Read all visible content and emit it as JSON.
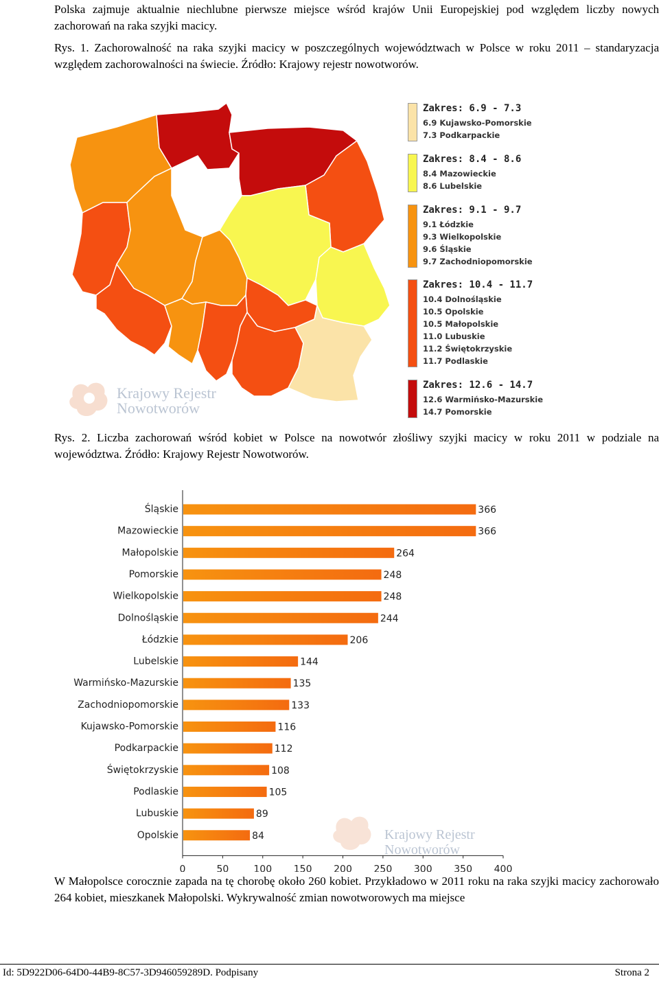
{
  "intro_text": "Polska zajmuje aktualnie niechlubne pierwsze miejsce wśród krajów Unii Europejskiej pod względem liczby nowych zachorowań na raka szyjki macicy.",
  "fig1_caption": "Rys. 1. Zachorowalność na raka szyjki macicy w poszczególnych województwach w Polsce w roku 2011 – standaryzacja względem zachorowalności na świecie. Źródło: Krajowy rejestr nowotworów.",
  "watermark": {
    "line1": "Krajowy Rejestr",
    "line2": "Nowotworów"
  },
  "map": {
    "colors": {
      "range1": "#fbe3a8",
      "range2": "#f8f650",
      "range3": "#f79310",
      "range4": "#f44f12",
      "range5": "#c40c0c"
    },
    "legend": [
      {
        "title": "Zakres: 6.9 - 7.3",
        "color": "#fbe3a8",
        "items": [
          "6.9 Kujawsko-Pomorskie",
          "7.3 Podkarpackie"
        ]
      },
      {
        "title": "Zakres: 8.4 - 8.6",
        "color": "#f8f650",
        "items": [
          "8.4 Mazowieckie",
          "8.6 Lubelskie"
        ]
      },
      {
        "title": "Zakres: 9.1 - 9.7",
        "color": "#f79310",
        "items": [
          "9.1 Łódzkie",
          "9.3 Wielkopolskie",
          "9.6 Śląskie",
          "9.7 Zachodniopomorskie"
        ]
      },
      {
        "title": "Zakres: 10.4 - 11.7",
        "color": "#f44f12",
        "items": [
          "10.4 Dolnośląskie",
          "10.5 Opolskie",
          "10.5 Małopolskie",
          "11.0 Lubuskie",
          "11.2 Świętokrzyskie",
          "11.7 Podlaskie"
        ]
      },
      {
        "title": "Zakres: 12.6 - 14.7",
        "color": "#c40c0c",
        "items": [
          "12.6 Warmińsko-Mazurskie",
          "14.7 Pomorskie"
        ]
      }
    ]
  },
  "fig2_caption": "Rys. 2. Liczba zachorowań wśród kobiet w Polsce na nowotwór złośliwy szyjki macicy w roku 2011 w podziale na województwa. Źródło: Krajowy Rejestr Nowotworów.",
  "chart_data": {
    "type": "bar",
    "orientation": "horizontal",
    "categories": [
      "Śląskie",
      "Mazowieckie",
      "Małopolskie",
      "Pomorskie",
      "Wielkopolskie",
      "Dolnośląskie",
      "Łódzkie",
      "Lubelskie",
      "Warmińsko-Mazurskie",
      "Zachodniopomorskie",
      "Kujawsko-Pomorskie",
      "Podkarpackie",
      "Świętokrzyskie",
      "Podlaskie",
      "Lubuskie",
      "Opolskie"
    ],
    "values": [
      366,
      366,
      264,
      248,
      248,
      244,
      206,
      144,
      135,
      133,
      116,
      112,
      108,
      105,
      89,
      84
    ],
    "xlim": [
      0,
      400
    ],
    "xticks": [
      0,
      50,
      100,
      150,
      200,
      250,
      300,
      350,
      400
    ],
    "bar_color": "#f79310",
    "bar_color_end": "#f46b10",
    "grid": false
  },
  "body_text": "W Małopolsce corocznie zapada na tę chorobę około 260 kobiet. Przykładowo w 2011 roku na raka szyjki macicy zachorowało 264 kobiet, mieszkanek Małopolski. Wykrywalność zmian nowotworowych ma miejsce",
  "footer": {
    "id_text": "Id: 5D922D06-64D0-44B9-8C57-3D946059289D. Podpisany",
    "page_text": "Strona 2"
  }
}
